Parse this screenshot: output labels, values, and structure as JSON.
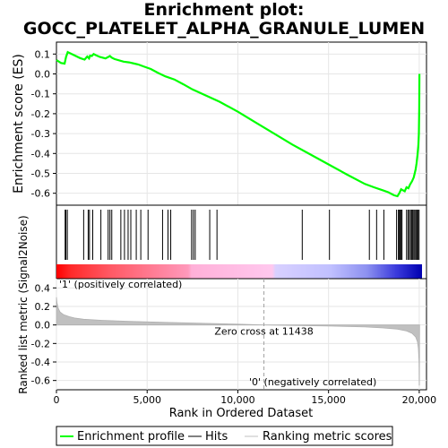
{
  "title_lines": [
    "Enrichment plot:",
    "GOCC_PLATELET_ALPHA_GRANULE_LUMEN"
  ],
  "colors": {
    "enrichment": "#00ff00",
    "hits": "#000000",
    "metric_fill": "#c0c0c0",
    "positive_label": "#cc0000",
    "negative_label": "#0000cc",
    "zero_cross_line": "#a0a0a0",
    "grid": "#e6e6e6"
  },
  "chart_data": [
    {
      "type": "line",
      "name": "enrichment-profile",
      "ylabel": "Enrichment score (ES)",
      "xlim": [
        0,
        20400
      ],
      "ylim": [
        -0.66,
        0.16
      ],
      "yticks": [
        0.1,
        0.0,
        -0.1,
        -0.2,
        -0.3,
        -0.4,
        -0.5,
        -0.6
      ],
      "ytick_labels": [
        "0.1",
        "0.0",
        "-0.1",
        "-0.2",
        "-0.3",
        "-0.4",
        "-0.5",
        "-0.6"
      ],
      "grid": true,
      "x": [
        0,
        250,
        450,
        530,
        620,
        1300,
        1550,
        1700,
        1800,
        1850,
        1950,
        2050,
        2150,
        2400,
        2700,
        2850,
        2950,
        3050,
        3200,
        3700,
        4000,
        4300,
        4500,
        4800,
        5200,
        5600,
        6000,
        6500,
        7000,
        7500,
        9000,
        10000,
        11000,
        12000,
        13000,
        14000,
        15000,
        16000,
        17000,
        17500,
        18000,
        18300,
        18600,
        18800,
        18900,
        19000,
        19100,
        19200,
        19300,
        19400,
        19500,
        19600,
        19700,
        19800,
        19850,
        19900,
        19950,
        19980,
        20000,
        20010
      ],
      "y": [
        0.07,
        0.055,
        0.052,
        0.085,
        0.11,
        0.08,
        0.072,
        0.088,
        0.078,
        0.092,
        0.09,
        0.1,
        0.095,
        0.085,
        0.078,
        0.085,
        0.09,
        0.082,
        0.075,
        0.062,
        0.058,
        0.052,
        0.048,
        0.038,
        0.025,
        0.005,
        -0.012,
        -0.028,
        -0.052,
        -0.078,
        -0.14,
        -0.19,
        -0.245,
        -0.3,
        -0.355,
        -0.405,
        -0.455,
        -0.505,
        -0.553,
        -0.57,
        -0.585,
        -0.595,
        -0.61,
        -0.615,
        -0.6,
        -0.58,
        -0.585,
        -0.59,
        -0.57,
        -0.575,
        -0.555,
        -0.54,
        -0.52,
        -0.48,
        -0.45,
        -0.41,
        -0.36,
        -0.3,
        -0.17,
        0.0
      ]
    },
    {
      "type": "scatter",
      "name": "hits",
      "x": [
        480,
        520,
        600,
        1500,
        1750,
        1820,
        2000,
        2450,
        2850,
        2950,
        3050,
        3550,
        3750,
        3950,
        4100,
        4400,
        4650,
        5050,
        5850,
        6150,
        6300,
        7450,
        7550,
        7650,
        8450,
        8850,
        13550,
        15050,
        17250,
        17650,
        18050,
        18750,
        18850,
        18900,
        18950,
        19000,
        19050,
        19300,
        19380,
        19450,
        19520,
        19580,
        19640,
        19700,
        19760,
        19820,
        19880,
        19940,
        19990
      ]
    },
    {
      "type": "area",
      "name": "ranking-metric-scores",
      "ylabel": "Ranked list metric (Signal2Noise)",
      "xlabel": "Rank in Ordered Dataset",
      "xlim": [
        0,
        20400
      ],
      "ylim": [
        -0.7,
        0.5
      ],
      "xticks": [
        0,
        5000,
        10000,
        15000,
        20000
      ],
      "xtick_labels": [
        "0",
        "5,000",
        "10,000",
        "15,000",
        "20,000"
      ],
      "yticks": [
        0.4,
        0.2,
        0.0,
        -0.2,
        -0.4,
        -0.6
      ],
      "ytick_labels": [
        "0.4",
        "0.2",
        "0.0",
        "-0.2",
        "-0.4",
        "-0.6"
      ],
      "x": [
        0,
        30,
        100,
        200,
        400,
        700,
        1000,
        1500,
        2500,
        4000,
        6000,
        8000,
        10000,
        11438,
        13000,
        15000,
        17000,
        18000,
        18800,
        19300,
        19600,
        19800,
        19900,
        19950,
        19990,
        20000,
        20010,
        20020
      ],
      "y": [
        0.3,
        0.24,
        0.18,
        0.14,
        0.11,
        0.09,
        0.075,
        0.062,
        0.05,
        0.038,
        0.028,
        0.018,
        0.008,
        0.0,
        -0.005,
        -0.012,
        -0.022,
        -0.032,
        -0.045,
        -0.065,
        -0.09,
        -0.13,
        -0.18,
        -0.25,
        -0.4,
        -0.65,
        -0.65,
        0.0
      ],
      "zero_cross_label": "Zero cross at 11438",
      "zero_cross_x": 11438,
      "positive_label": "'1' (positively correlated)",
      "negative_label": "'0' (negatively correlated)"
    }
  ],
  "legend": {
    "items": [
      {
        "label": "Enrichment profile",
        "kind": "line",
        "color": "#00ff00"
      },
      {
        "label": "Hits",
        "kind": "line",
        "color": "#000000"
      },
      {
        "label": "Ranking metric scores",
        "kind": "line",
        "color": "#c0c0c0"
      }
    ]
  }
}
